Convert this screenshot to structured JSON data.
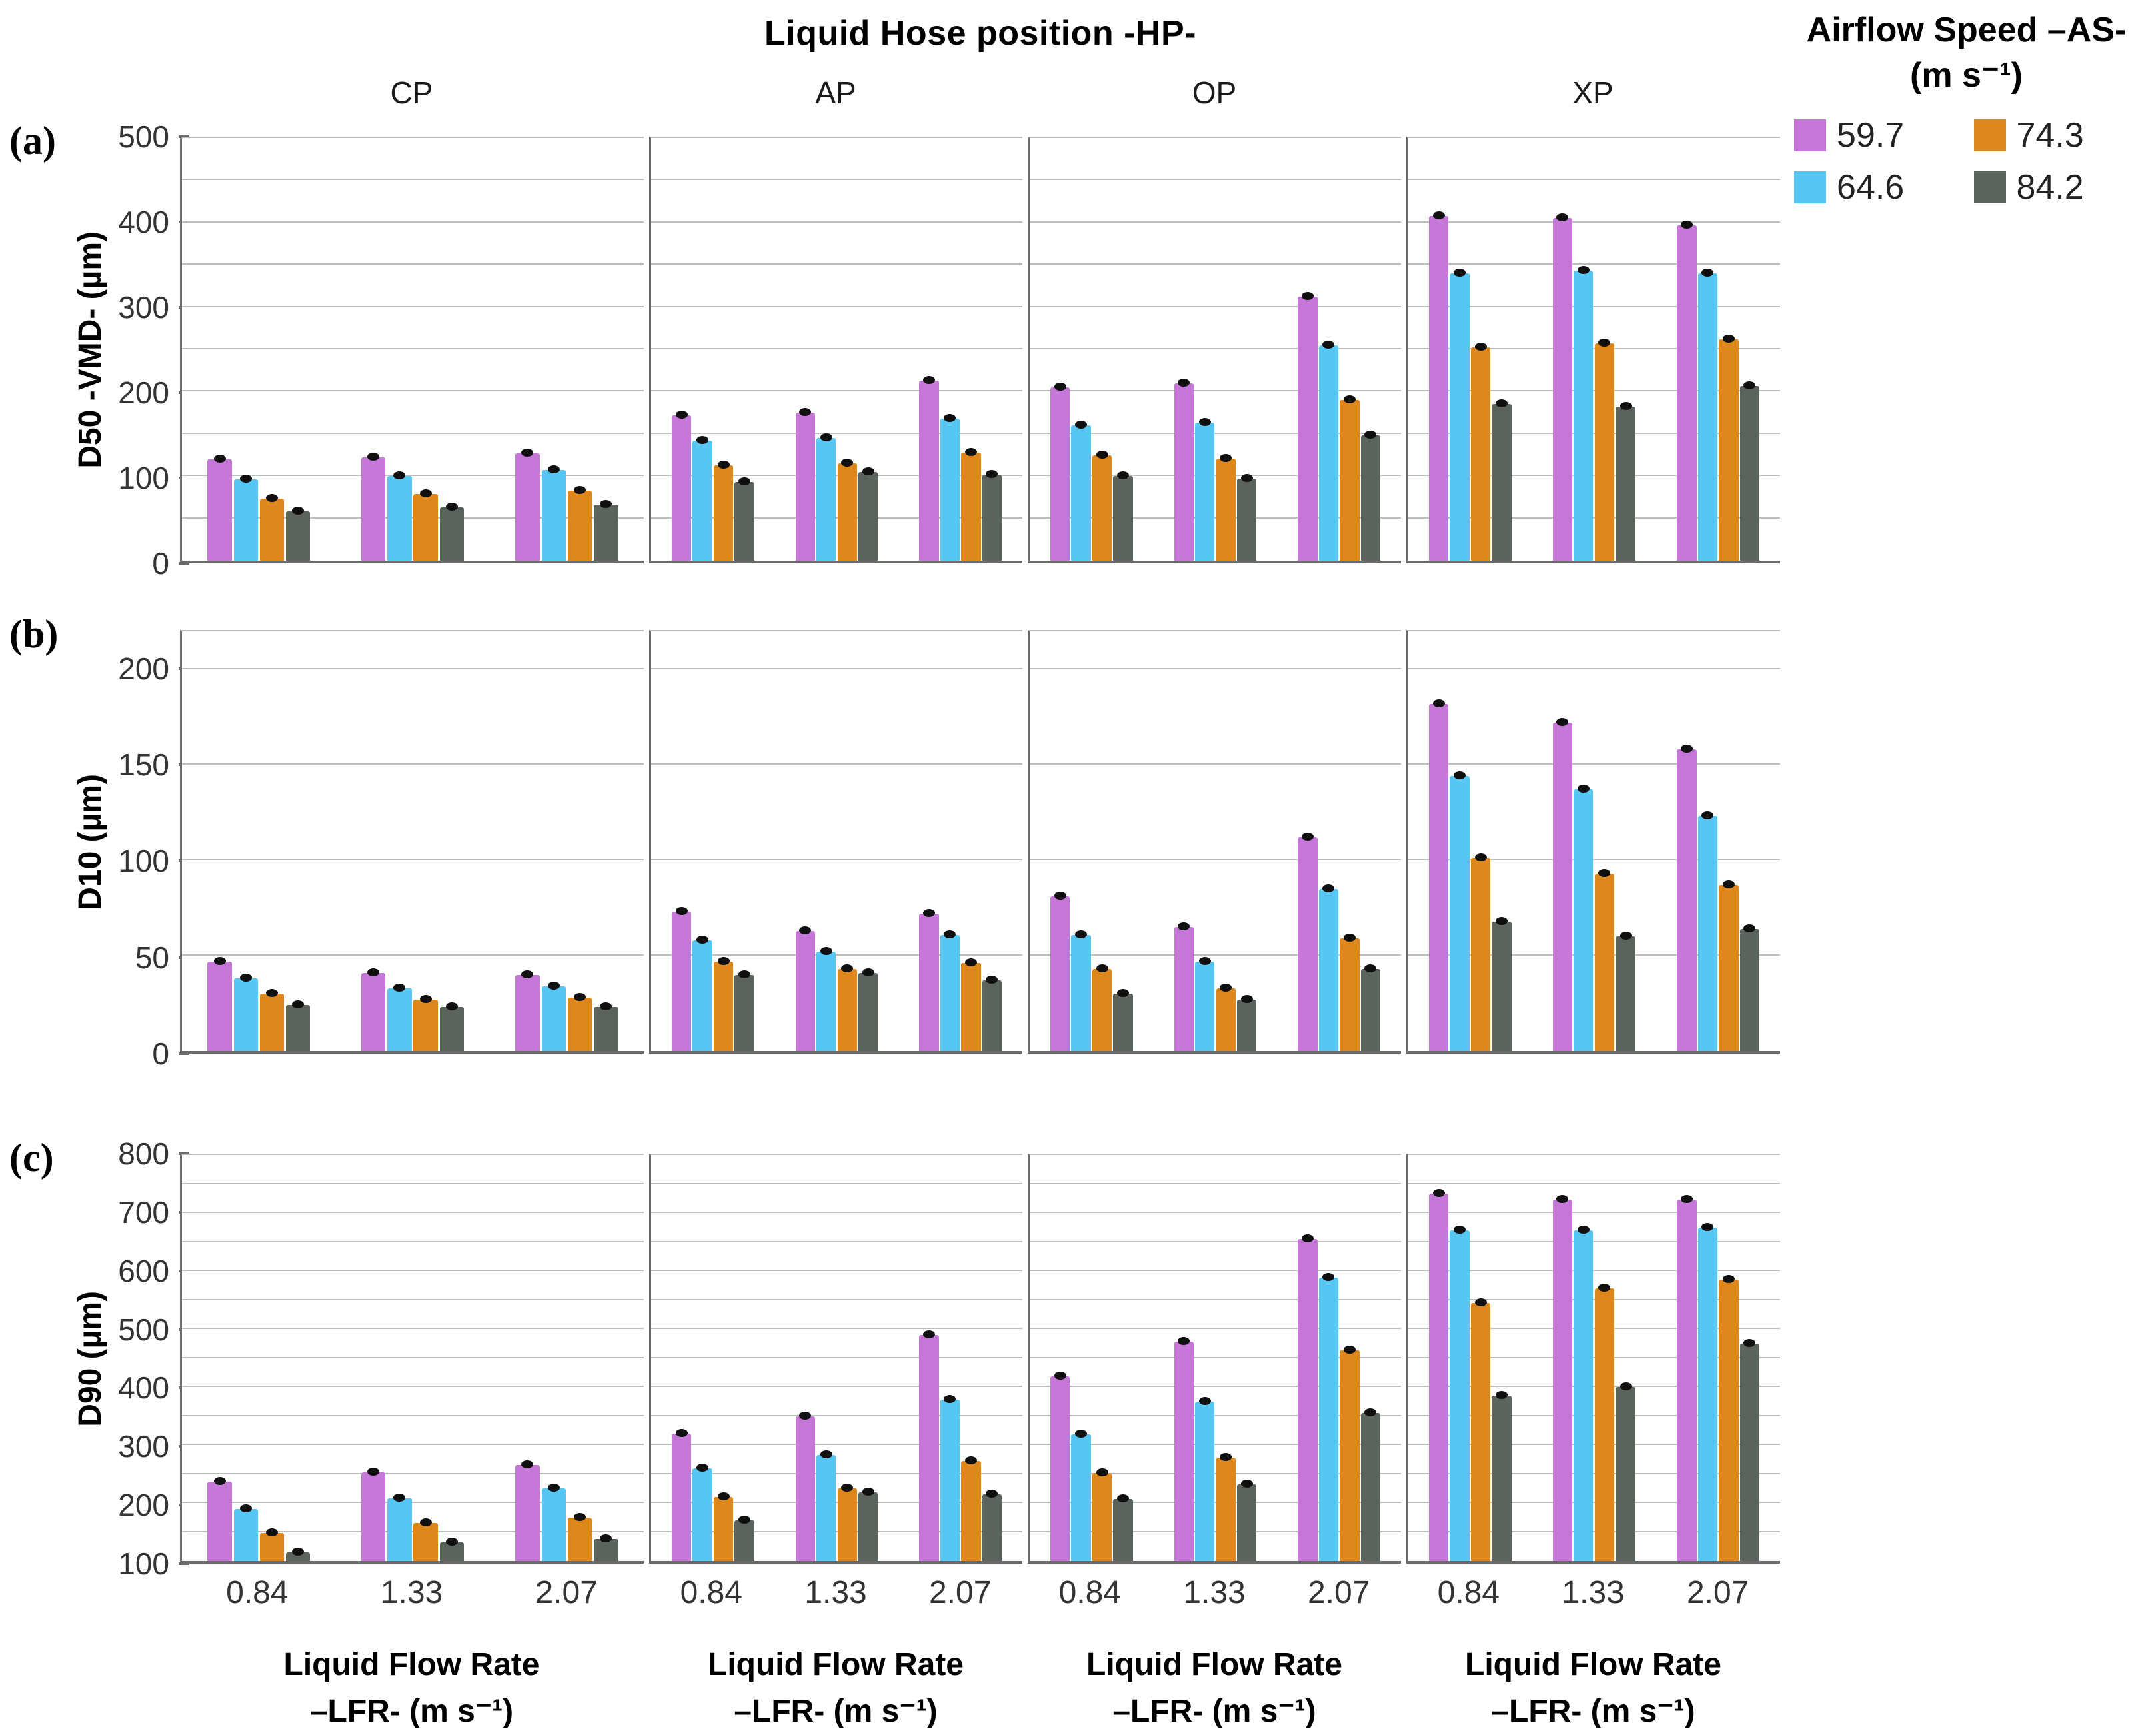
{
  "chart_data": {
    "type": "bar",
    "title": "Liquid Hose position -HP-",
    "facet_columns": [
      "CP",
      "AP",
      "OP",
      "XP"
    ],
    "categories": [
      "0.84",
      "1.33",
      "2.07"
    ],
    "legend": {
      "title_line1": "Airflow Speed –AS-",
      "title_line2": "(m s⁻¹)",
      "position": "top-right",
      "series": [
        {
          "name": "59.7",
          "color": "#c678d8"
        },
        {
          "name": "64.6",
          "color": "#57c6f3"
        },
        {
          "name": "74.3",
          "color": "#dd871c"
        },
        {
          "name": "84.2",
          "color": "#5b635d"
        }
      ]
    },
    "x_axis": {
      "title_line1": "Liquid Flow Rate",
      "title_line2": "–LFR- (m s⁻¹)"
    },
    "grid": true,
    "error_bars": true,
    "rows": [
      {
        "label": "(a)",
        "ylabel": "D50 -VMD- (µm)",
        "ylim": [
          0,
          500
        ],
        "yticks": [
          0,
          100,
          200,
          300,
          400,
          500
        ],
        "grid_step": 50,
        "panels": [
          {
            "column": "CP",
            "values": [
              [
                120,
                96,
                73,
                58
              ],
              [
                122,
                100,
                79,
                63
              ],
              [
                127,
                107,
                83,
                66
              ]
            ]
          },
          {
            "column": "AP",
            "values": [
              [
                172,
                142,
                113,
                93
              ],
              [
                175,
                145,
                115,
                105
              ],
              [
                213,
                168,
                128,
                102
              ]
            ]
          },
          {
            "column": "OP",
            "values": [
              [
                205,
                160,
                125,
                100
              ],
              [
                210,
                163,
                121,
                97
              ],
              [
                312,
                255,
                190,
                148
              ]
            ]
          },
          {
            "column": "XP",
            "values": [
              [
                408,
                340,
                252,
                185
              ],
              [
                405,
                343,
                257,
                182
              ],
              [
                397,
                340,
                262,
                207
              ]
            ]
          }
        ]
      },
      {
        "label": "(b)",
        "ylabel": "D10 (µm)",
        "ylim": [
          0,
          220
        ],
        "yticks": [
          0,
          50,
          100,
          150,
          200
        ],
        "grid_step": 50,
        "panels": [
          {
            "column": "CP",
            "values": [
              [
                47,
                38,
                30,
                24
              ],
              [
                41,
                33,
                27,
                23
              ],
              [
                40,
                34,
                28,
                23
              ]
            ]
          },
          {
            "column": "AP",
            "values": [
              [
                73,
                58,
                47,
                40
              ],
              [
                63,
                52,
                43,
                41
              ],
              [
                72,
                61,
                46,
                37
              ]
            ]
          },
          {
            "column": "OP",
            "values": [
              [
                81,
                61,
                43,
                30
              ],
              [
                65,
                47,
                33,
                27
              ],
              [
                112,
                85,
                59,
                43
              ]
            ]
          },
          {
            "column": "XP",
            "values": [
              [
                182,
                144,
                101,
                68
              ],
              [
                172,
                137,
                93,
                60
              ],
              [
                158,
                123,
                87,
                64
              ]
            ]
          }
        ]
      },
      {
        "label": "(c)",
        "ylabel": "D90 (µm)",
        "ylim": [
          100,
          800
        ],
        "yticks": [
          100,
          200,
          300,
          400,
          500,
          600,
          700,
          800
        ],
        "grid_step": 50,
        "panels": [
          {
            "column": "CP",
            "values": [
              [
                237,
                190,
                148,
                115
              ],
              [
                253,
                208,
                165,
                132
              ],
              [
                265,
                225,
                175,
                138
              ]
            ]
          },
          {
            "column": "AP",
            "values": [
              [
                320,
                260,
                210,
                170
              ],
              [
                350,
                283,
                225,
                218
              ],
              [
                490,
                378,
                272,
                215
              ]
            ]
          },
          {
            "column": "OP",
            "values": [
              [
                418,
                318,
                252,
                207
              ],
              [
                478,
                375,
                278,
                232
              ],
              [
                655,
                588,
                463,
                355
              ]
            ]
          },
          {
            "column": "XP",
            "values": [
              [
                733,
                670,
                545,
                385
              ],
              [
                723,
                670,
                570,
                400
              ],
              [
                723,
                675,
                585,
                475
              ]
            ]
          }
        ]
      }
    ]
  }
}
